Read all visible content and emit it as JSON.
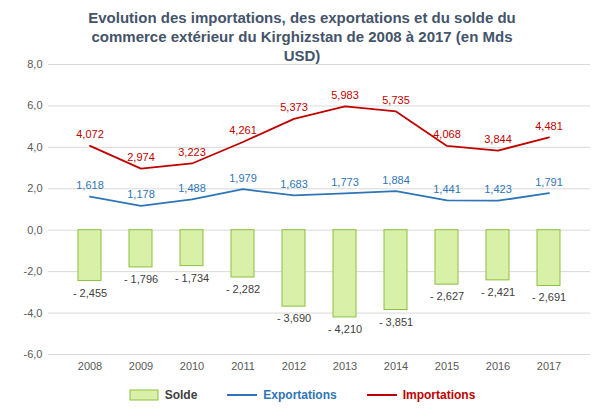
{
  "chart_data": {
    "type": "bar",
    "title": "Evolution des importations, des exportations et du solde du commerce extérieur du Kirghizstan de 2008 à 2017 (en Mds USD)",
    "categories": [
      "2008",
      "2009",
      "2010",
      "2011",
      "2012",
      "2013",
      "2014",
      "2015",
      "2016",
      "2017"
    ],
    "series": [
      {
        "name": "Solde",
        "type": "bar",
        "color": "#d8f0a8",
        "values": [
          -2.455,
          -1.796,
          -1.734,
          -2.282,
          -3.69,
          -4.21,
          -3.851,
          -2.627,
          -2.421,
          -2.691
        ],
        "value_labels": [
          "- 2,455",
          "- 1,796",
          "- 1,734",
          "- 2,282",
          "- 3,690",
          "- 4,210",
          "- 3,851",
          "- 2,627",
          "- 2,421",
          "- 2,691"
        ]
      },
      {
        "name": "Exportations",
        "type": "line",
        "color": "#2e75b6",
        "values": [
          1.618,
          1.178,
          1.488,
          1.979,
          1.683,
          1.773,
          1.884,
          1.441,
          1.423,
          1.791
        ],
        "value_labels": [
          "1,618",
          "1,178",
          "1,488",
          "1,979",
          "1,683",
          "1,773",
          "1,884",
          "1,441",
          "1,423",
          "1,791"
        ]
      },
      {
        "name": "Importations",
        "type": "line",
        "color": "#c00000",
        "values": [
          4.072,
          2.974,
          3.223,
          4.261,
          5.373,
          5.983,
          5.735,
          4.068,
          3.844,
          4.481
        ],
        "value_labels": [
          "4,072",
          "2,974",
          "3,223",
          "4,261",
          "5,373",
          "5,983",
          "5,735",
          "4,068",
          "3,844",
          "4,481"
        ]
      }
    ],
    "ylim": [
      -6,
      8
    ],
    "yticks": [
      {
        "value": -6,
        "label": "-6,0"
      },
      {
        "value": -4,
        "label": "-4,0"
      },
      {
        "value": -2,
        "label": "-2,0"
      },
      {
        "value": 0,
        "label": "0,0"
      },
      {
        "value": 2,
        "label": "2,0"
      },
      {
        "value": 4,
        "label": "4,0"
      },
      {
        "value": 6,
        "label": "6,0"
      },
      {
        "value": 8,
        "label": "8,0"
      }
    ],
    "grid": true,
    "data_labels": true,
    "legend": "bottom"
  }
}
